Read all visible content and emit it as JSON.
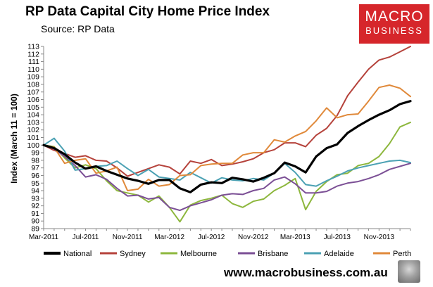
{
  "header": {
    "title": "RP Data Capital City Home Price Index",
    "subtitle": "Source: RP Data"
  },
  "logo": {
    "line1": "MACRO",
    "line2": "BUSINESS",
    "bg_color": "#d6262b"
  },
  "footer": {
    "website": "www.macrobusiness.com.au"
  },
  "chart_data": {
    "type": "line",
    "title": "RP Data Capital City Home Price Index",
    "subtitle": "Source: RP Data",
    "xlabel": "",
    "ylabel": "Index (March 11 = 100)",
    "x_ticks": [
      "Mar-2011",
      "Jul-2011",
      "Nov-2011",
      "Mar-2012",
      "Jul-2012",
      "Nov-2012",
      "Mar-2013",
      "Jul-2013",
      "Nov-2013"
    ],
    "y_ticks": [
      89,
      90,
      91,
      92,
      93,
      94,
      95,
      96,
      97,
      98,
      99,
      100,
      101,
      102,
      103,
      104,
      105,
      106,
      107,
      108,
      109,
      110,
      111,
      112,
      113
    ],
    "ylim": [
      89,
      113
    ],
    "x_range_months": [
      0,
      35
    ],
    "grid": false,
    "legend_position": "bottom",
    "x": [
      0,
      1,
      2,
      3,
      4,
      5,
      6,
      7,
      8,
      9,
      10,
      11,
      12,
      13,
      14,
      15,
      16,
      17,
      18,
      19,
      20,
      21,
      22,
      23,
      24,
      25,
      26,
      27,
      28,
      29,
      30,
      31,
      32,
      33,
      34,
      35
    ],
    "series": [
      {
        "name": "National",
        "color": "#000000",
        "width": 3.2,
        "values": [
          100,
          99.6,
          98.8,
          97.7,
          96.9,
          97.2,
          96.6,
          96.1,
          95.6,
          95.3,
          94.9,
          95.4,
          95.4,
          94.3,
          93.8,
          94.8,
          95.1,
          95.0,
          95.7,
          95.5,
          95.2,
          95.7,
          96.3,
          97.7,
          97.2,
          96.4,
          98.5,
          99.6,
          100.1,
          101.6,
          102.5,
          103.3,
          104.0,
          104.6,
          105.4,
          105.8
        ]
      },
      {
        "name": "Sydney",
        "color": "#b5423b",
        "width": 2,
        "values": [
          100,
          99.3,
          98.9,
          98.4,
          98.6,
          98.0,
          97.9,
          97.0,
          95.9,
          96.4,
          96.9,
          97.4,
          97.1,
          96.2,
          97.9,
          97.6,
          98.1,
          97.3,
          97.5,
          97.8,
          98.2,
          99.0,
          99.4,
          100.3,
          100.3,
          99.8,
          101.3,
          102.2,
          103.9,
          106.5,
          108.3,
          110.0,
          111.2,
          111.6,
          112.3,
          113.0
        ]
      },
      {
        "name": "Melbourne",
        "color": "#8db73d",
        "width": 2,
        "values": [
          100,
          99.8,
          98.3,
          97.0,
          97.4,
          96.9,
          95.3,
          94.0,
          93.7,
          93.4,
          92.5,
          93.3,
          91.8,
          89.9,
          92.1,
          92.7,
          93.0,
          93.4,
          92.3,
          91.8,
          92.6,
          92.9,
          94.0,
          94.7,
          95.6,
          91.5,
          93.9,
          95.2,
          96.1,
          96.3,
          97.3,
          97.6,
          98.5,
          100.2,
          102.4,
          103.0
        ]
      },
      {
        "name": "Brisbane",
        "color": "#7b4f95",
        "width": 2,
        "values": [
          100,
          99.5,
          98.5,
          97.3,
          95.8,
          96.1,
          95.5,
          94.3,
          93.3,
          93.4,
          92.9,
          93.1,
          91.8,
          91.4,
          92.0,
          92.4,
          92.8,
          93.4,
          93.6,
          93.5,
          94.0,
          94.3,
          95.4,
          95.8,
          94.9,
          93.7,
          93.7,
          93.9,
          94.6,
          95.0,
          95.2,
          95.6,
          96.1,
          96.8,
          97.2,
          97.6
        ]
      },
      {
        "name": "Adelaide",
        "color": "#4ba1b3",
        "width": 2,
        "values": [
          100,
          100.9,
          99.2,
          96.7,
          96.9,
          97.2,
          97.3,
          97.9,
          96.9,
          96.0,
          96.8,
          95.8,
          95.6,
          95.4,
          96.4,
          95.7,
          95.0,
          95.7,
          95.4,
          95.3,
          95.6,
          95.4,
          96.3,
          97.6,
          96.4,
          94.8,
          94.6,
          95.3,
          95.9,
          96.6,
          97.0,
          97.3,
          97.6,
          97.9,
          98.0,
          97.7
        ]
      },
      {
        "name": "Perth",
        "color": "#e0893a",
        "width": 2,
        "values": [
          100,
          99.7,
          97.6,
          98.0,
          98.2,
          96.3,
          96.6,
          97.1,
          94.0,
          94.2,
          95.5,
          94.6,
          94.8,
          96.0,
          96.1,
          97.3,
          97.5,
          97.6,
          97.6,
          98.7,
          99.0,
          99.0,
          100.7,
          100.4,
          101.2,
          101.8,
          103.2,
          104.9,
          103.6,
          104.0,
          104.1,
          105.8,
          107.6,
          107.9,
          107.5,
          106.4
        ]
      }
    ]
  }
}
